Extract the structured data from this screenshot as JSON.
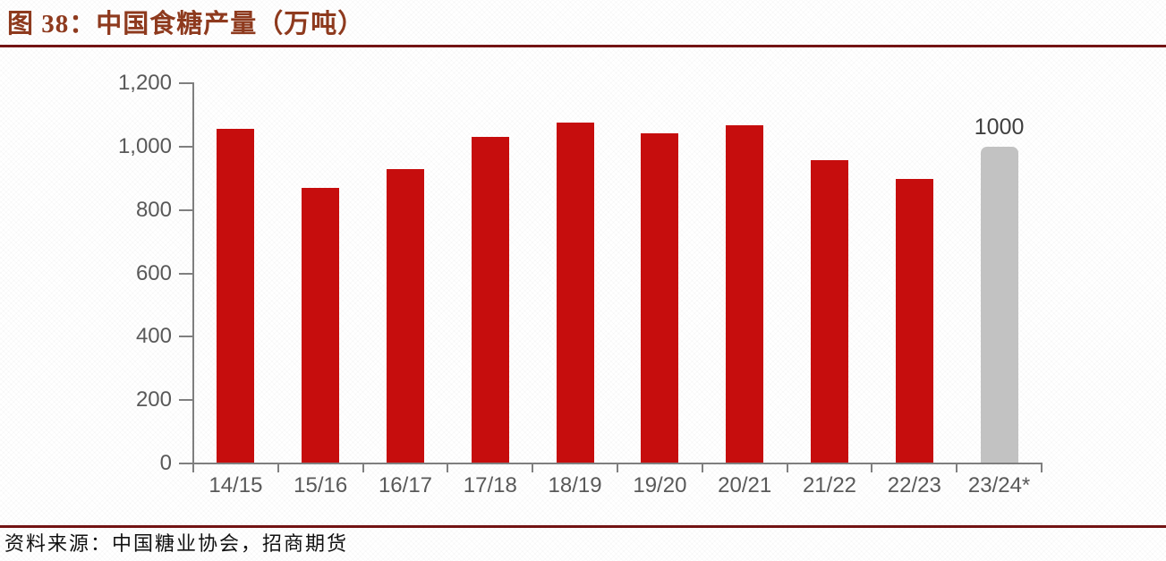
{
  "header": {
    "title": "图 38：中国食糖产量（万吨）"
  },
  "footer": {
    "source": "资料来源：中国糖业协会，招商期货"
  },
  "colors": {
    "bar_red": "#C60D0D",
    "bar_gray": "#C2C2C2",
    "title_text": "#8E3A1E",
    "rule": "#731414",
    "axis_line": "#7F7F7F",
    "tick_text": "#595959",
    "annotation_text": "#3F3F3F",
    "source_text": "#111111"
  },
  "chart_data": {
    "type": "bar",
    "title": "中国食糖产量（万吨）",
    "figure_label": "图 38",
    "categories": [
      "14/15",
      "15/16",
      "16/17",
      "17/18",
      "18/19",
      "19/20",
      "20/21",
      "21/22",
      "22/23",
      "23/24*"
    ],
    "values": [
      1056,
      870,
      929,
      1031,
      1076,
      1042,
      1067,
      956,
      897,
      1000
    ],
    "bar_colors": [
      "#C60D0D",
      "#C60D0D",
      "#C60D0D",
      "#C60D0D",
      "#C60D0D",
      "#C60D0D",
      "#C60D0D",
      "#C60D0D",
      "#C60D0D",
      "#C2C2C2"
    ],
    "annotations": [
      {
        "category": "23/24*",
        "text": "1000"
      }
    ],
    "xlabel": "",
    "ylabel": "",
    "ylim": [
      0,
      1200
    ],
    "ytick_values": [
      0,
      200,
      400,
      600,
      800,
      1000,
      1200
    ],
    "ytick_labels": [
      "0",
      "200",
      "400",
      "600",
      "800",
      "1,000",
      "1,200"
    ],
    "grid": false,
    "legend": "none"
  }
}
